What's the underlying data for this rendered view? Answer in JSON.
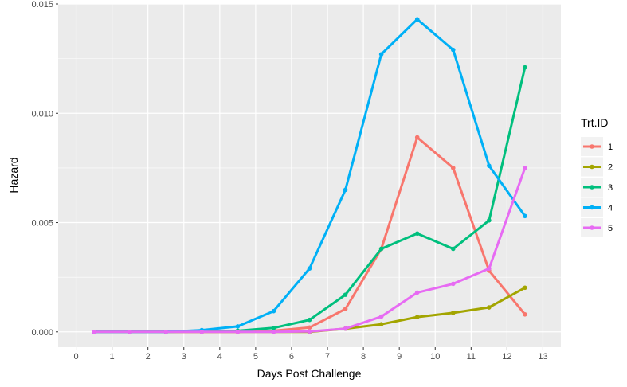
{
  "chart_data": {
    "type": "line",
    "xlabel": "Days Post Challenge",
    "ylabel": "Hazard",
    "xlim": [
      -0.5,
      13.5
    ],
    "ylim": [
      -0.0007,
      0.015
    ],
    "x_ticks": [
      "0",
      "1",
      "2",
      "3",
      "4",
      "5",
      "6",
      "7",
      "8",
      "9",
      "10",
      "11",
      "12",
      "13"
    ],
    "y_ticks": [
      "0.000",
      "0.005",
      "0.010",
      "0.015"
    ],
    "x_tick_values": [
      0,
      1,
      2,
      3,
      4,
      5,
      6,
      7,
      8,
      9,
      10,
      11,
      12,
      13
    ],
    "y_tick_values": [
      0,
      0.005,
      0.01,
      0.015
    ],
    "grid": true,
    "legend": {
      "title": "Trt.ID",
      "position": "right"
    },
    "x": [
      0.5,
      1.5,
      2.5,
      3.5,
      4.5,
      5.5,
      6.5,
      7.5,
      8.5,
      9.5,
      10.5,
      11.5,
      12.5
    ],
    "series": [
      {
        "name": "1",
        "color": "#F8766D",
        "values": [
          0,
          0,
          0,
          0,
          0,
          5e-05,
          0.0002,
          0.00105,
          0.0038,
          0.0089,
          0.0075,
          0.0028,
          0.0008
        ]
      },
      {
        "name": "2",
        "color": "#A3A500",
        "values": [
          0,
          0,
          0,
          0,
          0,
          0,
          0,
          0.00015,
          0.00035,
          0.00068,
          0.00087,
          0.00112,
          0.00202
        ]
      },
      {
        "name": "3",
        "color": "#00BF7D",
        "values": [
          0,
          0,
          0,
          2e-05,
          5e-05,
          0.00018,
          0.00055,
          0.0017,
          0.0038,
          0.0045,
          0.0038,
          0.0051,
          0.0121
        ]
      },
      {
        "name": "4",
        "color": "#00B0F6",
        "values": [
          0,
          0,
          0,
          8e-05,
          0.00025,
          0.00095,
          0.0029,
          0.0065,
          0.0127,
          0.0143,
          0.0129,
          0.0076,
          0.0053
        ]
      },
      {
        "name": "5",
        "color": "#E76BF3",
        "values": [
          0,
          0,
          0,
          0,
          0,
          0,
          2e-05,
          0.00015,
          0.0007,
          0.0018,
          0.0022,
          0.0029,
          0.0075
        ]
      }
    ]
  }
}
